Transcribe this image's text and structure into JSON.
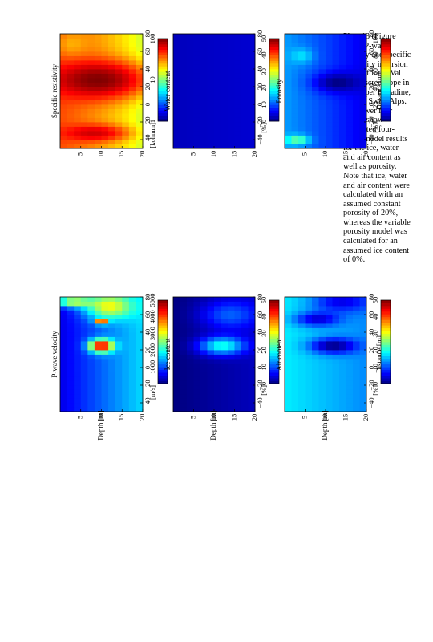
{
  "caption": "Plate 13 (Figure 10.4). P-wave velocity and specific resistivity inversion results for the Val Bever scree slope in the Upper Engadine, eastern Swiss Alps. The lower four panels show calculated four-phase model results for the ice, water and air content as well as porosity. Note that ice, water and air content were calculated with an assumed constant porosity of 20%, whereas the variable porosity model was calculated for an assumed ice content of 0%.",
  "chart_data": [
    {
      "type": "heatmap",
      "title": "P-wave velocity",
      "xlabel": "",
      "ylabel": "Depth [m]",
      "xlim": [
        -50,
        80
      ],
      "ylim": [
        20,
        0
      ],
      "xticks": [
        "−40",
        "−20",
        "0",
        "20",
        "40",
        "60",
        "80"
      ],
      "yticks": [
        "5",
        "10",
        "15",
        "20"
      ],
      "colorbar": {
        "unit": "[m/s]",
        "range": [
          0,
          5000
        ],
        "ticks": [
          "1000",
          "2000",
          "3000",
          "4000",
          "5000"
        ],
        "colormap": "jet"
      },
      "features": [
        {
          "kind": "blob",
          "x": 25,
          "y": 10,
          "sx": 5,
          "sy": 2,
          "value": 4800
        },
        {
          "kind": "blob",
          "x": 52,
          "y": 10,
          "sx": 2,
          "sy": 1,
          "value": 4400
        },
        {
          "kind": "blob",
          "x": 70,
          "y": 12,
          "sx": 10,
          "sy": 4,
          "value": 3100
        },
        {
          "kind": "blob",
          "x": 75,
          "y": 3,
          "sx": 4,
          "sy": 3,
          "value": 2800
        }
      ],
      "background": {
        "top": 500,
        "bottom": 1700
      }
    },
    {
      "type": "heatmap",
      "title": "Specific resistivity",
      "xlabel": "",
      "ylabel": "",
      "xlim": [
        -50,
        80
      ],
      "ylim": [
        20,
        0
      ],
      "xticks": [
        "−40",
        "−20",
        "0",
        "20",
        "40",
        "60",
        "80"
      ],
      "yticks": [
        "5",
        "10",
        "15",
        "20"
      ],
      "colorbar": {
        "unit": "[kohmm]",
        "range": [
          1,
          100
        ],
        "log": true,
        "ticks": [
          "1",
          "10",
          "100"
        ],
        "colormap": "jet"
      },
      "features": [
        {
          "kind": "blob",
          "x": 28,
          "y": 9,
          "sx": 13,
          "sy": 7,
          "value": 100
        },
        {
          "kind": "blob",
          "x": -32,
          "y": 8,
          "sx": 6,
          "sy": 5,
          "value": 70
        },
        {
          "kind": "blob",
          "x": 68,
          "y": 3,
          "sx": 12,
          "sy": 3,
          "value": 25
        }
      ],
      "background": {
        "top": 40,
        "bottom": 14
      }
    },
    {
      "type": "heatmap",
      "title": "Ice content",
      "xlabel": "",
      "ylabel": "Depth [m]",
      "xlim": [
        -50,
        80
      ],
      "ylim": [
        20,
        0
      ],
      "xticks": [
        "−40",
        "−20",
        "0",
        "20",
        "40",
        "60",
        "80"
      ],
      "yticks": [
        "5",
        "10",
        "15",
        "20"
      ],
      "colorbar": {
        "unit": "[%]",
        "range": [
          0,
          50
        ],
        "ticks": [
          "0",
          "10",
          "20",
          "30",
          "40",
          "50"
        ],
        "colormap": "jet"
      },
      "features": [
        {
          "kind": "blob",
          "x": 25,
          "y": 12,
          "sx": 7,
          "sy": 4,
          "value": 20
        },
        {
          "kind": "blob",
          "x": 60,
          "y": 14,
          "sx": 12,
          "sy": 5,
          "value": 11
        }
      ],
      "background": {
        "top": 0,
        "bottom": 3
      }
    },
    {
      "type": "heatmap",
      "title": "Water content",
      "xlabel": "",
      "ylabel": "",
      "xlim": [
        -50,
        80
      ],
      "ylim": [
        20,
        0
      ],
      "xticks": [
        "−40",
        "−20",
        "0",
        "20",
        "40",
        "60",
        "80"
      ],
      "yticks": [
        "5",
        "10",
        "15",
        "20"
      ],
      "colorbar": {
        "unit": "[%]",
        "range": [
          0,
          50
        ],
        "ticks": [
          "0",
          "10",
          "20",
          "30",
          "40",
          "50"
        ],
        "colormap": "jet"
      },
      "features": [],
      "background": {
        "top": 3,
        "bottom": 4
      }
    },
    {
      "type": "heatmap",
      "title": "Air content",
      "xlabel": "Distance [m]",
      "ylabel": "Depth [m]",
      "xlim": [
        -50,
        80
      ],
      "ylim": [
        20,
        0
      ],
      "xticks": [
        "−40",
        "−20",
        "0",
        "20",
        "40",
        "60",
        "80"
      ],
      "yticks": [
        "5",
        "10",
        "15",
        "20"
      ],
      "colorbar": {
        "unit": "[%]",
        "range": [
          0,
          50
        ],
        "ticks": [
          "0",
          "10",
          "20",
          "30",
          "40",
          "50"
        ],
        "colormap": "jet"
      },
      "features": [
        {
          "kind": "blob",
          "x": 25,
          "y": 12,
          "sx": 6,
          "sy": 4,
          "value": 0
        },
        {
          "kind": "blob",
          "x": 55,
          "y": 8,
          "sx": 6,
          "sy": 4,
          "value": 4
        },
        {
          "kind": "blob",
          "x": 75,
          "y": 14,
          "sx": 8,
          "sy": 5,
          "value": 5
        }
      ],
      "background": {
        "top": 18,
        "bottom": 13
      }
    },
    {
      "type": "heatmap",
      "title": "Porosity",
      "xlabel": "Distance [m]",
      "ylabel": "",
      "xlim": [
        -50,
        80
      ],
      "ylim": [
        20,
        0
      ],
      "xticks": [
        "−40",
        "−20",
        "0",
        "20",
        "40",
        "60",
        "80"
      ],
      "yticks": [
        "5",
        "10",
        "15",
        "20"
      ],
      "colorbar": {
        "unit": "[%]",
        "range": [
          0,
          100
        ],
        "ticks": [
          "0",
          "20",
          "40",
          "60",
          "80",
          "100"
        ],
        "colormap": "jet"
      },
      "features": [
        {
          "kind": "blob",
          "x": 25,
          "y": 13,
          "sx": 8,
          "sy": 4,
          "value": 0
        },
        {
          "kind": "blob",
          "x": -40,
          "y": 3,
          "sx": 4,
          "sy": 2,
          "value": 50
        },
        {
          "kind": "blob",
          "x": 55,
          "y": 4,
          "sx": 6,
          "sy": 2,
          "value": 35
        }
      ],
      "background": {
        "top": 28,
        "bottom": 10
      }
    }
  ]
}
